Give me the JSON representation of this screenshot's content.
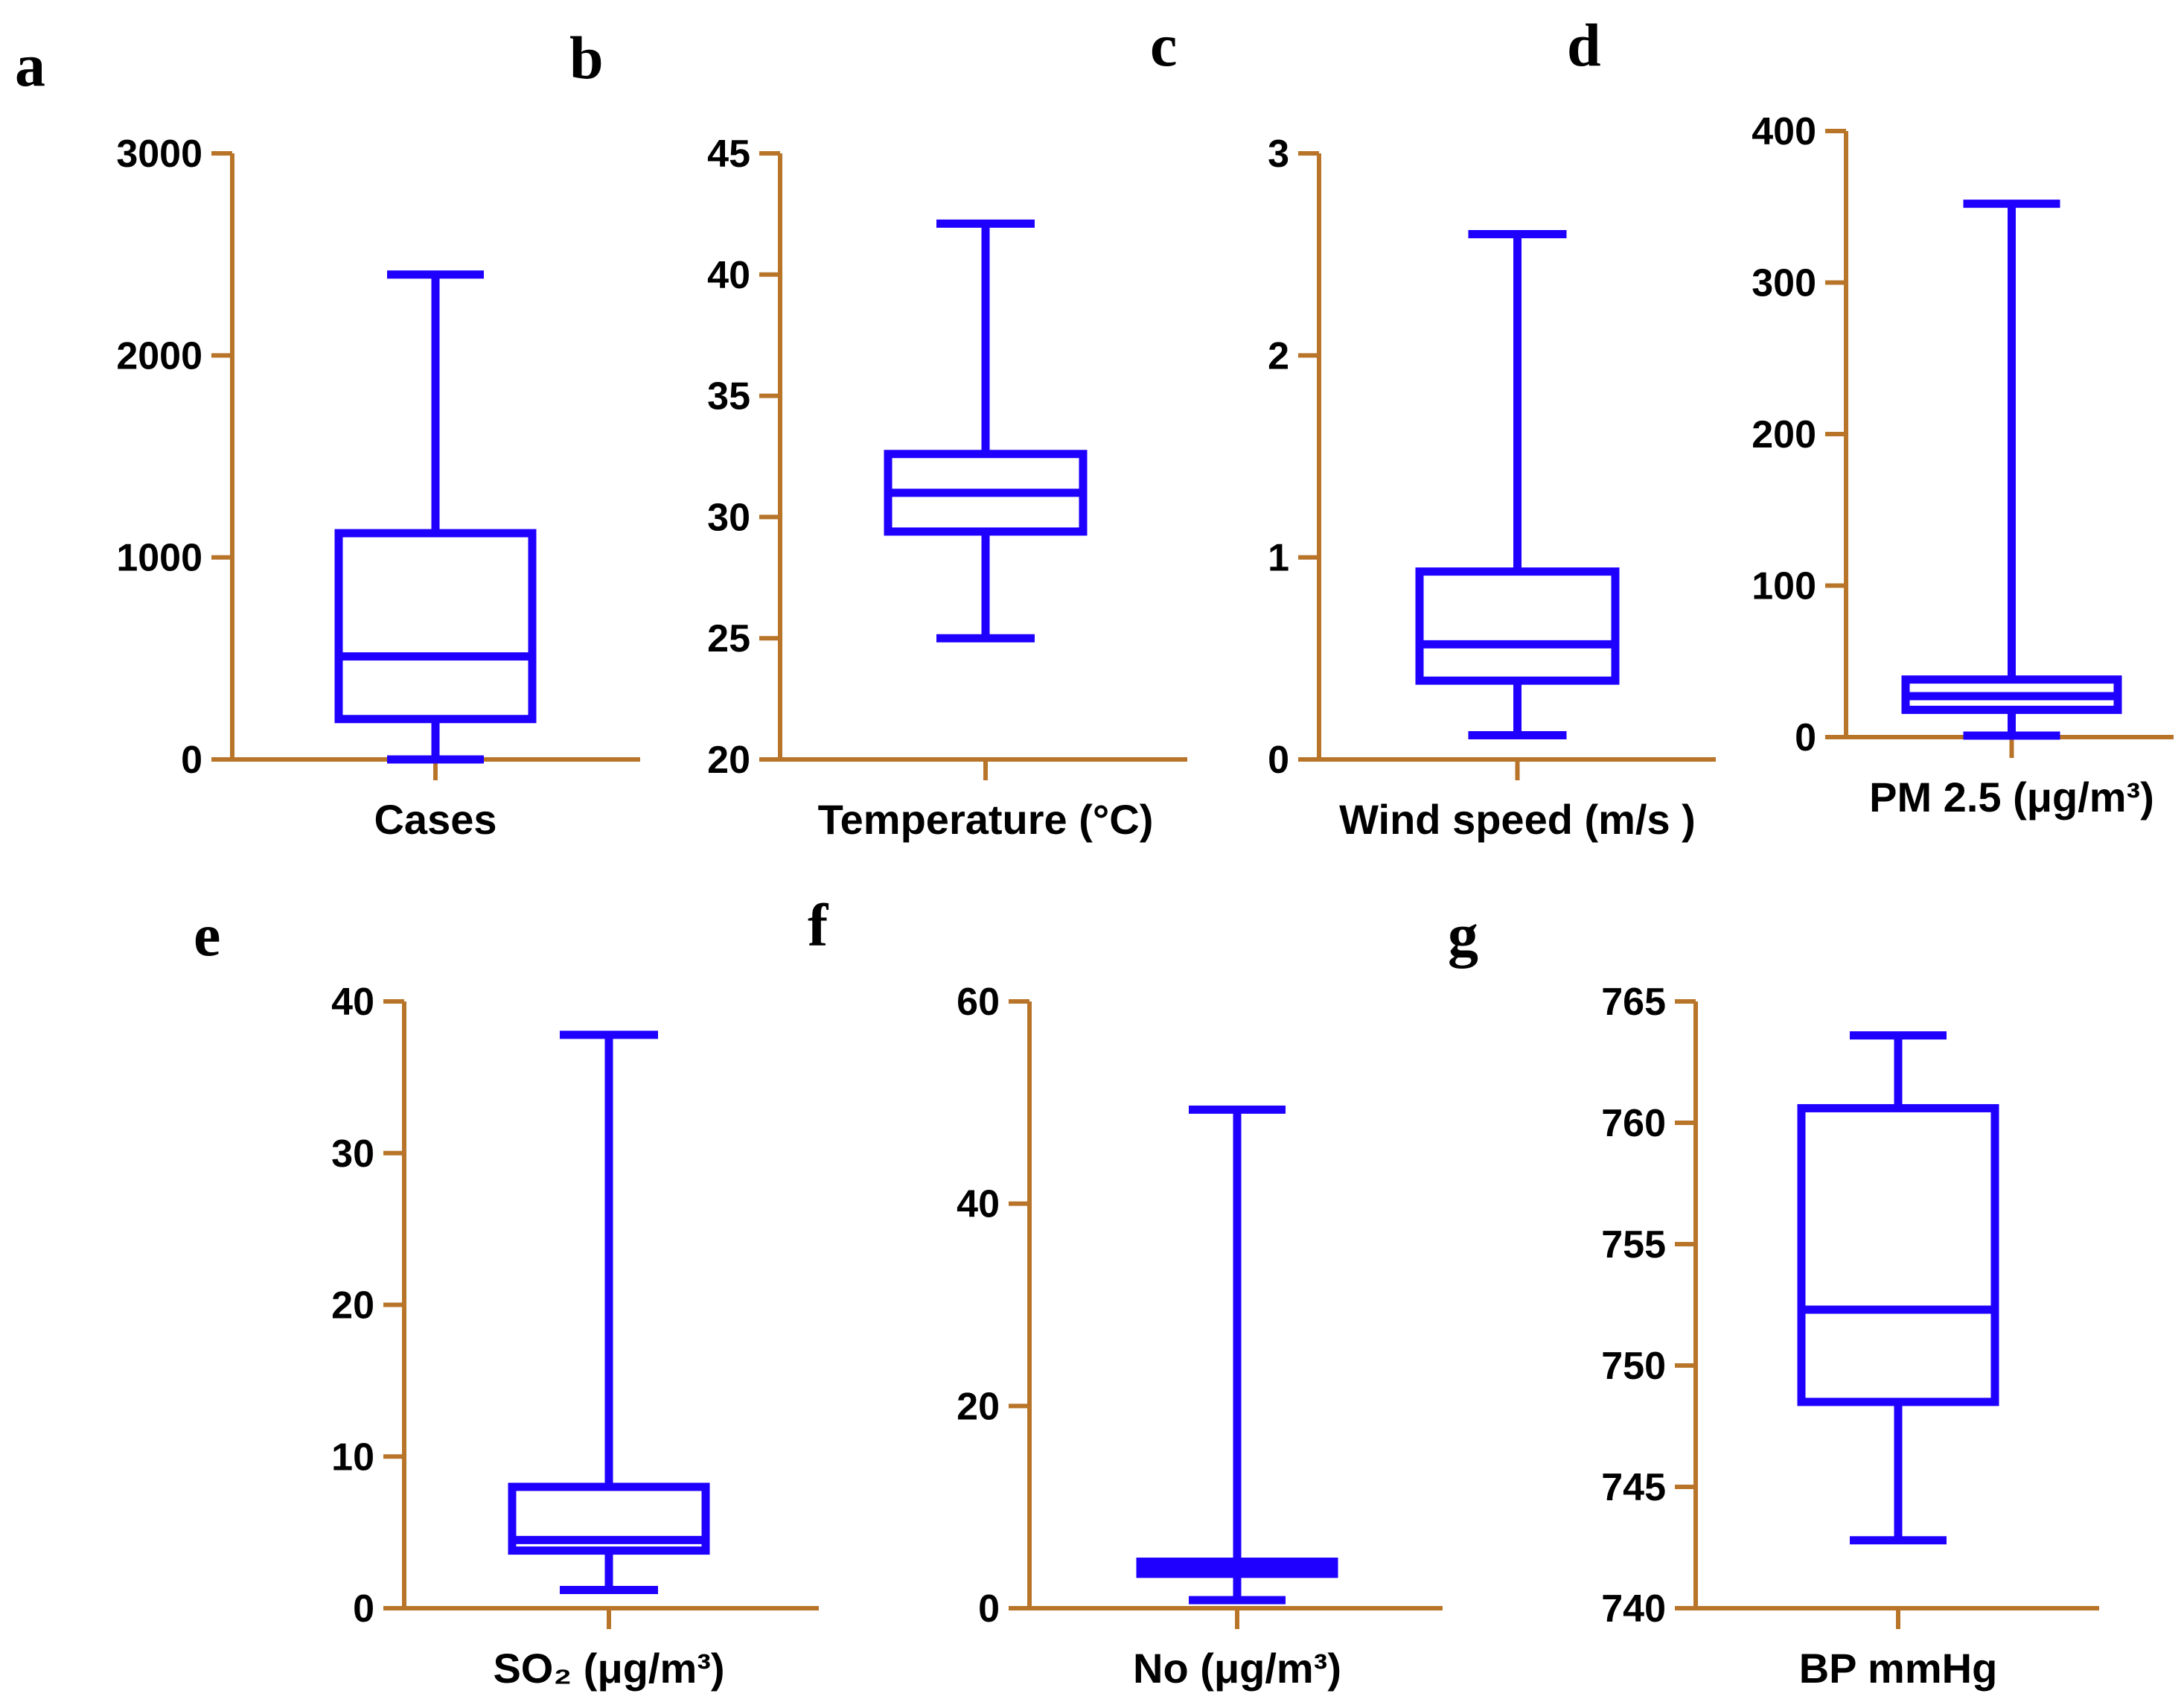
{
  "chart_data": [
    {
      "type": "box",
      "panel": "a",
      "xlabel": "Cases",
      "yticks": [
        "0",
        "1000",
        "2000",
        "3000"
      ],
      "ylim": [
        0,
        3000
      ],
      "stats": {
        "min": 0,
        "q1": 200,
        "median": 510,
        "q3": 1120,
        "max": 2400
      }
    },
    {
      "type": "box",
      "panel": "b",
      "xlabel": "Temperature (°C)",
      "yticks": [
        "20",
        "25",
        "30",
        "35",
        "40",
        "45"
      ],
      "ylim": [
        20,
        45
      ],
      "stats": {
        "min": 25,
        "q1": 29.4,
        "median": 31,
        "q3": 32.6,
        "max": 42.1
      }
    },
    {
      "type": "box",
      "panel": "c",
      "xlabel": "Wind speed (m/s )",
      "yticks": [
        "0",
        "1",
        "2",
        "3"
      ],
      "ylim": [
        0,
        3
      ],
      "stats": {
        "min": 0.12,
        "q1": 0.39,
        "median": 0.57,
        "q3": 0.93,
        "max": 2.6
      }
    },
    {
      "type": "box",
      "panel": "d",
      "xlabel": "PM 2.5 (μg/m³)",
      "yticks": [
        "0",
        "100",
        "200",
        "300",
        "400"
      ],
      "ylim": [
        0,
        400
      ],
      "stats": {
        "min": 1,
        "q1": 18,
        "median": 27,
        "q3": 38,
        "max": 352
      }
    },
    {
      "type": "box",
      "panel": "e",
      "xlabel": "SO₂ (μg/m³)",
      "yticks": [
        "0",
        "10",
        "20",
        "30",
        "40"
      ],
      "ylim": [
        0,
        40
      ],
      "stats": {
        "min": 1.2,
        "q1": 3.8,
        "median": 4.5,
        "q3": 8,
        "max": 37.8
      }
    },
    {
      "type": "box",
      "panel": "f",
      "xlabel": "No (μg/m³)",
      "yticks": [
        "0",
        "20",
        "40",
        "60"
      ],
      "ylim": [
        0,
        60
      ],
      "stats": {
        "min": 0.8,
        "q1": 3.4,
        "median": 4,
        "q3": 4.6,
        "max": 49.3
      }
    },
    {
      "type": "box",
      "panel": "g",
      "xlabel": "BP mmHg",
      "yticks": [
        "740",
        "745",
        "750",
        "755",
        "760",
        "765"
      ],
      "ylim": [
        740,
        765
      ],
      "stats": {
        "min": 742.8,
        "q1": 748.5,
        "median": 752.3,
        "q3": 760.6,
        "max": 763.6
      }
    }
  ]
}
